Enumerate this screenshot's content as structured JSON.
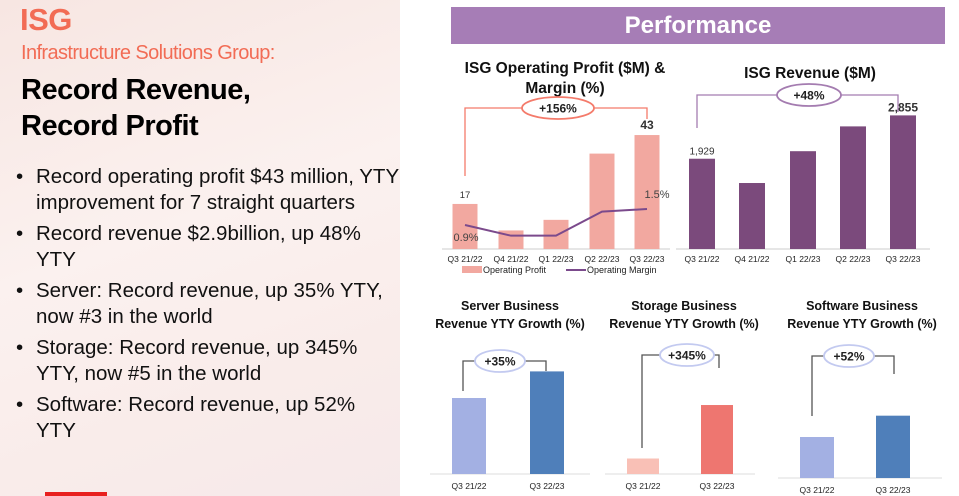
{
  "left": {
    "brand": "ISG",
    "subtitle": "Infrastructure Solutions Group:",
    "headline_1": "Record Revenue,",
    "headline_2": "Record Profit",
    "bullets": [
      "Record operating profit $43 million, YTY improvement for 7 straight quarters",
      "Record revenue $2.9billion, up 48% YTY",
      "Server: Record revenue, up 35% YTY, now #3 in the world",
      "Storage: Record revenue, up 345% YTY, now #5 in the world",
      "Software: Record revenue, up 52% YTY"
    ],
    "accent_color": "#f26c55"
  },
  "banner": {
    "title": "Performance",
    "color": "#a67db6"
  },
  "chart_data": [
    {
      "type": "bar+line",
      "title": [
        "ISG Operating Profit ($M) &",
        "Margin (%)"
      ],
      "categories": [
        "Q3 21/22",
        "Q4 21/22",
        "Q1 22/23",
        "Q2 22/23",
        "Q3 22/23"
      ],
      "series": [
        {
          "name": "Operating Profit",
          "type": "bar",
          "values": [
            17,
            7,
            11,
            36,
            43
          ],
          "labels": [
            "17",
            "",
            "",
            "",
            "43"
          ],
          "color": "#f2a8a0"
        },
        {
          "name": "Operating Margin",
          "type": "line",
          "values": [
            0.9,
            0.5,
            0.5,
            1.4,
            1.5
          ],
          "labels": [
            "0.9%",
            "",
            "",
            "",
            "1.5%"
          ],
          "color": "#7b4a8c"
        }
      ],
      "callout": "+156%",
      "callout_color": "#f47b6b",
      "legend": "bottom"
    },
    {
      "type": "bar",
      "title": [
        "ISG Revenue ($M)"
      ],
      "categories": [
        "Q3 21/22",
        "Q4 21/22",
        "Q1 22/23",
        "Q2 22/23",
        "Q3 22/23"
      ],
      "values": [
        1929,
        1410,
        2090,
        2620,
        2855
      ],
      "labels": [
        "1,929",
        "",
        "",
        "",
        "2,855"
      ],
      "color": "#7b4a7c",
      "callout": "+48%",
      "callout_color": "#a47cb0"
    },
    {
      "type": "bar",
      "title": [
        "Server Business",
        "Revenue YTY Growth (%)"
      ],
      "categories": [
        "Q3 21/22",
        "Q3 22/23"
      ],
      "values": [
        100,
        135
      ],
      "colors": [
        "#a3b0e3",
        "#4f7fba"
      ],
      "callout": "+35%",
      "callout_color": "#c3caf0"
    },
    {
      "type": "bar",
      "title": [
        "Storage Business",
        "Revenue YTY Growth (%)"
      ],
      "categories": [
        "Q3 21/22",
        "Q3 22/23"
      ],
      "values": [
        100,
        445
      ],
      "colors": [
        "#f9c0b6",
        "#ee7670"
      ],
      "callout": "+345%",
      "callout_color": "#c3caf0"
    },
    {
      "type": "bar",
      "title": [
        "Software Business",
        "Revenue YTY Growth (%)"
      ],
      "categories": [
        "Q3 21/22",
        "Q3 22/23"
      ],
      "values": [
        100,
        152
      ],
      "colors": [
        "#a3b0e3",
        "#4f7fba"
      ],
      "callout": "+52%",
      "callout_color": "#c3caf0"
    }
  ]
}
